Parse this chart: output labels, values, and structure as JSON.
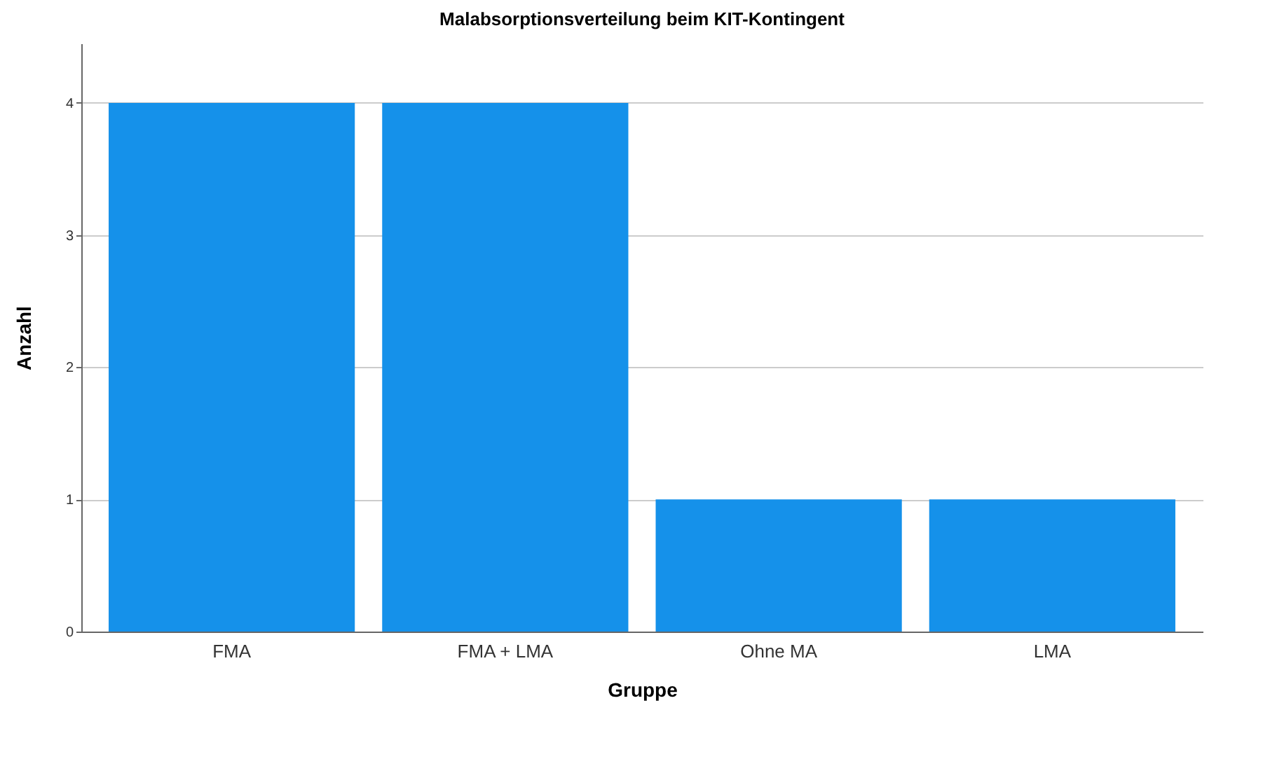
{
  "chart_data": {
    "type": "bar",
    "title": "Malabsorptionsverteilung beim KIT-Kontingent",
    "xlabel": "Gruppe",
    "ylabel": "Anzahl",
    "categories": [
      "FMA",
      "FMA + LMA",
      "Ohne MA",
      "LMA"
    ],
    "values": [
      4,
      4,
      1,
      1
    ],
    "color": "#1591ea",
    "ylim": [
      0,
      4.45
    ],
    "yticks": [
      0,
      1,
      2,
      3,
      4
    ],
    "grid": "y"
  }
}
